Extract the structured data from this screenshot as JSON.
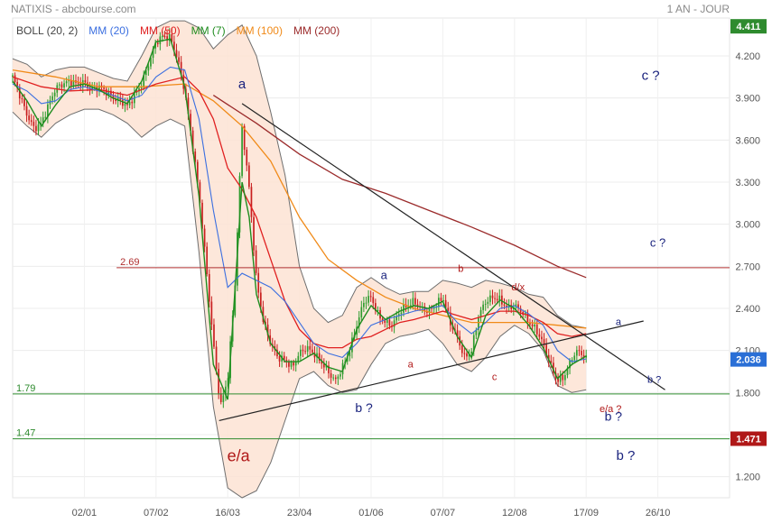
{
  "header": {
    "title": "NATIXIS - abcbourse.com",
    "period": "1 AN - JOUR"
  },
  "chart_data": {
    "type": "line",
    "ylim": [
      1.05,
      4.47
    ],
    "xlim": [
      0,
      100
    ],
    "x_ticks": [
      {
        "x": 10.0,
        "label": "02/01"
      },
      {
        "x": 20.0,
        "label": "07/02"
      },
      {
        "x": 30.0,
        "label": "16/03"
      },
      {
        "x": 40.0,
        "label": "23/04"
      },
      {
        "x": 50.0,
        "label": "01/06"
      },
      {
        "x": 60.0,
        "label": "07/07"
      },
      {
        "x": 70.0,
        "label": "12/08"
      },
      {
        "x": 80.0,
        "label": "17/09"
      },
      {
        "x": 90.0,
        "label": "26/10"
      }
    ],
    "y_ticks": [
      "4.200",
      "3.900",
      "3.600",
      "3.300",
      "3.000",
      "2.700",
      "2.400",
      "2.100",
      "1.800",
      "1.500",
      "1.200"
    ],
    "legend": [
      {
        "label": "BOLL (20, 2)",
        "color": "#444444"
      },
      {
        "label": "MM (20)",
        "color": "#3b6fe0"
      },
      {
        "label": "MM (50)",
        "color": "#e02020"
      },
      {
        "label": "MM (7)",
        "color": "#1e8c1e"
      },
      {
        "label": "MM (100)",
        "color": "#f08a18"
      },
      {
        "label": "MM (200)",
        "color": "#9b2b2b"
      }
    ],
    "price_badges": [
      {
        "value": 4.411,
        "label": "4.411",
        "color": "#2e8b2e"
      },
      {
        "value": 2.036,
        "label": "2.036",
        "color": "#2a6fd6"
      },
      {
        "value": 1.471,
        "label": "1.471",
        "color": "#b01818"
      }
    ],
    "hlines": [
      {
        "value": 2.69,
        "label": "2.69",
        "color": "#b03030",
        "x_start": 14.5
      },
      {
        "value": 1.79,
        "label": "1.79",
        "color": "#2e8b2e",
        "x_start": 0
      },
      {
        "value": 1.47,
        "label": "1.47",
        "color": "#2e8b2e",
        "x_start": 0
      }
    ],
    "trendlines": [
      {
        "x1": 32.0,
        "y1": 3.86,
        "x2": 91.0,
        "y2": 1.82
      },
      {
        "x1": 28.8,
        "y1": 1.6,
        "x2": 88.0,
        "y2": 2.31
      }
    ],
    "close": [
      [
        0,
        4.05
      ],
      [
        1,
        3.92
      ],
      [
        2,
        3.78
      ],
      [
        3,
        3.68
      ],
      [
        4,
        3.72
      ],
      [
        5,
        3.85
      ],
      [
        6,
        3.97
      ],
      [
        7,
        4.0
      ],
      [
        8,
        4.02
      ],
      [
        9,
        4.0
      ],
      [
        10,
        4.01
      ],
      [
        11,
        3.96
      ],
      [
        12,
        3.98
      ],
      [
        13,
        3.95
      ],
      [
        14,
        3.9
      ],
      [
        15,
        3.88
      ],
      [
        16,
        3.84
      ],
      [
        17,
        3.92
      ],
      [
        18,
        4.0
      ],
      [
        19,
        4.15
      ],
      [
        20,
        4.3
      ],
      [
        21,
        4.34
      ],
      [
        22,
        4.33
      ],
      [
        23,
        4.18
      ],
      [
        24,
        3.95
      ],
      [
        25,
        3.6
      ],
      [
        26,
        3.22
      ],
      [
        27,
        2.7
      ],
      [
        28,
        2.15
      ],
      [
        29,
        1.7
      ],
      [
        30,
        1.9
      ],
      [
        31,
        2.55
      ],
      [
        32,
        3.7
      ],
      [
        33,
        3.25
      ],
      [
        34,
        2.6
      ],
      [
        35,
        2.3
      ],
      [
        36,
        2.15
      ],
      [
        37,
        2.05
      ],
      [
        38,
        2.03
      ],
      [
        39,
        1.98
      ],
      [
        40,
        2.08
      ],
      [
        41,
        2.12
      ],
      [
        42,
        2.08
      ],
      [
        43,
        2.02
      ],
      [
        44,
        1.95
      ],
      [
        45,
        1.88
      ],
      [
        46,
        1.98
      ],
      [
        47,
        2.1
      ],
      [
        48,
        2.28
      ],
      [
        49,
        2.45
      ],
      [
        50,
        2.48
      ],
      [
        51,
        2.35
      ],
      [
        52,
        2.3
      ],
      [
        53,
        2.28
      ],
      [
        54,
        2.38
      ],
      [
        55,
        2.42
      ],
      [
        56,
        2.45
      ],
      [
        57,
        2.4
      ],
      [
        58,
        2.38
      ],
      [
        59,
        2.42
      ],
      [
        60,
        2.48
      ],
      [
        61,
        2.3
      ],
      [
        62,
        2.2
      ],
      [
        63,
        2.05
      ],
      [
        64,
        2.1
      ],
      [
        65,
        2.35
      ],
      [
        66,
        2.45
      ],
      [
        67,
        2.48
      ],
      [
        68,
        2.46
      ],
      [
        69,
        2.4
      ],
      [
        70,
        2.42
      ],
      [
        71,
        2.38
      ],
      [
        72,
        2.3
      ],
      [
        73,
        2.25
      ],
      [
        74,
        2.15
      ],
      [
        75,
        2.0
      ],
      [
        76,
        1.88
      ],
      [
        77,
        1.92
      ],
      [
        78,
        2.05
      ],
      [
        79,
        2.1
      ],
      [
        80,
        2.036
      ]
    ],
    "bb_upper": [
      [
        0,
        4.18
      ],
      [
        2,
        4.14
      ],
      [
        4,
        4.05
      ],
      [
        6,
        4.1
      ],
      [
        8,
        4.12
      ],
      [
        10,
        4.12
      ],
      [
        12,
        4.08
      ],
      [
        14,
        4.04
      ],
      [
        16,
        4.02
      ],
      [
        18,
        4.2
      ],
      [
        20,
        4.4
      ],
      [
        22,
        4.45
      ],
      [
        24,
        4.45
      ],
      [
        26,
        4.4
      ],
      [
        28,
        4.25
      ],
      [
        30,
        4.35
      ],
      [
        32,
        4.42
      ],
      [
        34,
        4.2
      ],
      [
        36,
        3.8
      ],
      [
        38,
        3.35
      ],
      [
        40,
        2.7
      ],
      [
        42,
        2.4
      ],
      [
        44,
        2.3
      ],
      [
        46,
        2.35
      ],
      [
        48,
        2.55
      ],
      [
        50,
        2.62
      ],
      [
        52,
        2.55
      ],
      [
        54,
        2.5
      ],
      [
        56,
        2.52
      ],
      [
        58,
        2.52
      ],
      [
        60,
        2.6
      ],
      [
        62,
        2.58
      ],
      [
        64,
        2.55
      ],
      [
        66,
        2.6
      ],
      [
        68,
        2.58
      ],
      [
        70,
        2.55
      ],
      [
        72,
        2.5
      ],
      [
        74,
        2.48
      ],
      [
        76,
        2.35
      ],
      [
        78,
        2.28
      ],
      [
        80,
        2.26
      ]
    ],
    "bb_lower": [
      [
        0,
        3.8
      ],
      [
        2,
        3.7
      ],
      [
        4,
        3.62
      ],
      [
        6,
        3.72
      ],
      [
        8,
        3.78
      ],
      [
        10,
        3.82
      ],
      [
        12,
        3.82
      ],
      [
        14,
        3.78
      ],
      [
        16,
        3.72
      ],
      [
        18,
        3.62
      ],
      [
        20,
        3.7
      ],
      [
        22,
        3.75
      ],
      [
        24,
        3.7
      ],
      [
        26,
        2.8
      ],
      [
        28,
        1.7
      ],
      [
        30,
        1.12
      ],
      [
        32,
        1.05
      ],
      [
        34,
        1.1
      ],
      [
        36,
        1.3
      ],
      [
        38,
        1.6
      ],
      [
        40,
        1.9
      ],
      [
        42,
        1.95
      ],
      [
        44,
        1.85
      ],
      [
        46,
        1.8
      ],
      [
        48,
        1.82
      ],
      [
        50,
        2.0
      ],
      [
        52,
        2.15
      ],
      [
        54,
        2.2
      ],
      [
        56,
        2.22
      ],
      [
        58,
        2.25
      ],
      [
        60,
        2.15
      ],
      [
        62,
        2.0
      ],
      [
        64,
        1.95
      ],
      [
        66,
        2.05
      ],
      [
        68,
        2.2
      ],
      [
        70,
        2.28
      ],
      [
        72,
        2.22
      ],
      [
        74,
        2.1
      ],
      [
        76,
        1.85
      ],
      [
        78,
        1.8
      ],
      [
        80,
        1.82
      ]
    ],
    "mm20": [
      [
        0,
        4.0
      ],
      [
        2,
        3.95
      ],
      [
        4,
        3.86
      ],
      [
        6,
        3.88
      ],
      [
        8,
        3.96
      ],
      [
        10,
        3.98
      ],
      [
        12,
        3.95
      ],
      [
        14,
        3.92
      ],
      [
        16,
        3.88
      ],
      [
        18,
        3.92
      ],
      [
        20,
        4.05
      ],
      [
        22,
        4.12
      ],
      [
        24,
        4.1
      ],
      [
        26,
        3.75
      ],
      [
        28,
        3.1
      ],
      [
        30,
        2.55
      ],
      [
        32,
        2.65
      ],
      [
        34,
        2.6
      ],
      [
        36,
        2.55
      ],
      [
        38,
        2.45
      ],
      [
        40,
        2.3
      ],
      [
        42,
        2.15
      ],
      [
        44,
        2.08
      ],
      [
        46,
        2.05
      ],
      [
        48,
        2.15
      ],
      [
        50,
        2.28
      ],
      [
        52,
        2.32
      ],
      [
        54,
        2.35
      ],
      [
        56,
        2.38
      ],
      [
        58,
        2.4
      ],
      [
        60,
        2.42
      ],
      [
        62,
        2.3
      ],
      [
        64,
        2.22
      ],
      [
        66,
        2.3
      ],
      [
        68,
        2.4
      ],
      [
        70,
        2.42
      ],
      [
        72,
        2.36
      ],
      [
        74,
        2.28
      ],
      [
        76,
        2.1
      ],
      [
        78,
        2.02
      ],
      [
        80,
        2.04
      ]
    ],
    "mm50": [
      [
        0,
        4.05
      ],
      [
        4,
        3.98
      ],
      [
        8,
        3.95
      ],
      [
        12,
        3.96
      ],
      [
        16,
        3.92
      ],
      [
        20,
        4.0
      ],
      [
        24,
        4.05
      ],
      [
        26,
        3.95
      ],
      [
        28,
        3.75
      ],
      [
        30,
        3.4
      ],
      [
        32,
        3.25
      ],
      [
        34,
        3.05
      ],
      [
        36,
        2.75
      ],
      [
        38,
        2.45
      ],
      [
        40,
        2.25
      ],
      [
        42,
        2.15
      ],
      [
        44,
        2.12
      ],
      [
        46,
        2.12
      ],
      [
        48,
        2.18
      ],
      [
        50,
        2.2
      ],
      [
        52,
        2.25
      ],
      [
        54,
        2.3
      ],
      [
        56,
        2.32
      ],
      [
        58,
        2.35
      ],
      [
        60,
        2.38
      ],
      [
        62,
        2.35
      ],
      [
        64,
        2.32
      ],
      [
        66,
        2.35
      ],
      [
        68,
        2.38
      ],
      [
        70,
        2.38
      ],
      [
        72,
        2.35
      ],
      [
        74,
        2.3
      ],
      [
        76,
        2.22
      ],
      [
        78,
        2.2
      ],
      [
        80,
        2.22
      ]
    ],
    "mm7": [
      [
        0,
        4.02
      ],
      [
        2,
        3.88
      ],
      [
        4,
        3.7
      ],
      [
        6,
        3.85
      ],
      [
        8,
        3.98
      ],
      [
        10,
        4.0
      ],
      [
        12,
        3.96
      ],
      [
        14,
        3.9
      ],
      [
        16,
        3.86
      ],
      [
        18,
        4.02
      ],
      [
        20,
        4.3
      ],
      [
        22,
        4.32
      ],
      [
        24,
        3.98
      ],
      [
        26,
        3.2
      ],
      [
        28,
        2.0
      ],
      [
        30,
        1.75
      ],
      [
        32,
        3.3
      ],
      [
        33,
        3.05
      ],
      [
        34,
        2.5
      ],
      [
        36,
        2.15
      ],
      [
        38,
        2.02
      ],
      [
        40,
        2.02
      ],
      [
        42,
        2.08
      ],
      [
        44,
        1.98
      ],
      [
        46,
        1.95
      ],
      [
        48,
        2.25
      ],
      [
        50,
        2.42
      ],
      [
        52,
        2.32
      ],
      [
        54,
        2.38
      ],
      [
        56,
        2.42
      ],
      [
        58,
        2.4
      ],
      [
        60,
        2.45
      ],
      [
        62,
        2.2
      ],
      [
        64,
        2.05
      ],
      [
        66,
        2.35
      ],
      [
        68,
        2.46
      ],
      [
        70,
        2.4
      ],
      [
        72,
        2.28
      ],
      [
        74,
        2.12
      ],
      [
        76,
        1.9
      ],
      [
        78,
        2.0
      ],
      [
        80,
        2.06
      ]
    ],
    "mm100": [
      [
        0,
        4.1
      ],
      [
        6,
        4.05
      ],
      [
        12,
        3.98
      ],
      [
        18,
        3.98
      ],
      [
        24,
        4.0
      ],
      [
        28,
        3.88
      ],
      [
        32,
        3.7
      ],
      [
        36,
        3.45
      ],
      [
        40,
        3.05
      ],
      [
        44,
        2.75
      ],
      [
        48,
        2.6
      ],
      [
        52,
        2.48
      ],
      [
        56,
        2.4
      ],
      [
        60,
        2.35
      ],
      [
        64,
        2.3
      ],
      [
        68,
        2.3
      ],
      [
        72,
        2.3
      ],
      [
        76,
        2.28
      ],
      [
        80,
        2.26
      ]
    ],
    "mm200": [
      [
        28,
        3.92
      ],
      [
        34,
        3.72
      ],
      [
        40,
        3.5
      ],
      [
        46,
        3.32
      ],
      [
        52,
        3.22
      ],
      [
        58,
        3.1
      ],
      [
        64,
        2.98
      ],
      [
        70,
        2.85
      ],
      [
        76,
        2.7
      ],
      [
        80,
        2.62
      ]
    ],
    "annotations": [
      {
        "text": "a",
        "x": 32.0,
        "y": 3.97,
        "color": "#1a237e",
        "size": 15
      },
      {
        "text": "c ?",
        "x": 89.0,
        "y": 4.03,
        "color": "#1a237e",
        "size": 15
      },
      {
        "text": "c ?",
        "x": 90.0,
        "y": 2.84,
        "color": "#1a237e",
        "size": 13
      },
      {
        "text": "a",
        "x": 51.8,
        "y": 2.61,
        "color": "#1a237e",
        "size": 13
      },
      {
        "text": "b",
        "x": 62.5,
        "y": 2.66,
        "color": "#b01818",
        "size": 11
      },
      {
        "text": "d/x",
        "x": 70.5,
        "y": 2.53,
        "color": "#b01818",
        "size": 11
      },
      {
        "text": "a",
        "x": 84.5,
        "y": 2.28,
        "color": "#1a237e",
        "size": 11
      },
      {
        "text": "a",
        "x": 55.5,
        "y": 1.98,
        "color": "#b01818",
        "size": 11
      },
      {
        "text": "c",
        "x": 67.2,
        "y": 1.89,
        "color": "#b01818",
        "size": 11
      },
      {
        "text": "b ?",
        "x": 49.0,
        "y": 1.66,
        "color": "#1a237e",
        "size": 14
      },
      {
        "text": "e/a ?",
        "x": 83.4,
        "y": 1.66,
        "color": "#b01818",
        "size": 11
      },
      {
        "text": "b ?",
        "x": 83.8,
        "y": 1.6,
        "color": "#1a237e",
        "size": 14
      },
      {
        "text": "b ?",
        "x": 89.5,
        "y": 1.87,
        "color": "#1a237e",
        "size": 11
      },
      {
        "text": "e/a",
        "x": 31.5,
        "y": 1.31,
        "color": "#b01818",
        "size": 18
      },
      {
        "text": "b ?",
        "x": 85.5,
        "y": 1.32,
        "color": "#1a237e",
        "size": 15
      }
    ]
  }
}
